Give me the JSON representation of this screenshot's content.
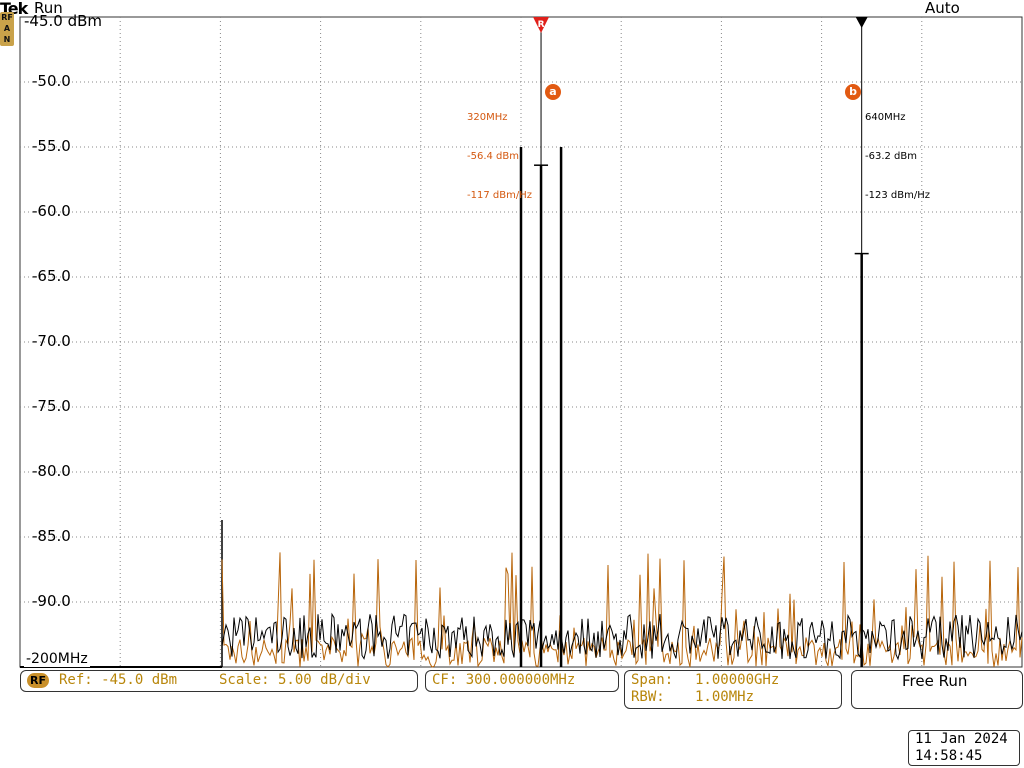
{
  "header": {
    "brand": "Tek",
    "run_state": "Run",
    "trigger_mode": "Auto"
  },
  "rf_indicator": [
    "RF",
    "A",
    "N"
  ],
  "y_axis": {
    "labels": [
      "-45.0 dBm",
      "-50.0",
      "-55.0",
      "-60.0",
      "-65.0",
      "-70.0",
      "-75.0",
      "-80.0",
      "-85.0",
      "-90.0"
    ],
    "min_dbm": -95,
    "max_dbm": -45
  },
  "x_axis": {
    "left_label": "-200MHz"
  },
  "markers": {
    "a": {
      "badge": "a",
      "freq": "320MHz",
      "level": "-56.4 dBm",
      "density": "-117 dBm/Hz",
      "freq_mhz": 320,
      "level_dbm": -56.4,
      "ref_flag": "R"
    },
    "b": {
      "badge": "b",
      "freq": "640MHz",
      "level": "-63.2 dBm",
      "density": "-123 dBm/Hz",
      "freq_mhz": 640,
      "level_dbm": -63.2
    }
  },
  "status": {
    "rf_tag": "RF",
    "ref": "Ref: -45.0 dBm",
    "scale": "Scale: 5.00 dB/div",
    "cf": "CF:  300.000000MHz",
    "span_label": "Span:",
    "span_value": "1.00000GHz",
    "rbw_label": "RBW:",
    "rbw_value": "1.00MHz",
    "acq_mode": "Free Run"
  },
  "datetime": {
    "date": "11 Jan  2024",
    "time": "14:58:45"
  },
  "colors": {
    "trace_avg": "#000000",
    "trace_max": "#b8650a",
    "marker": "#d4580f",
    "grid": "#888888"
  },
  "chart_data": {
    "type": "line",
    "xlabel": "",
    "ylabel": "",
    "xlim_mhz": [
      -200,
      800
    ],
    "ylim": [
      -95,
      -45
    ],
    "series": [
      {
        "values_peaks_mhz": [
          300,
          320,
          340,
          640
        ],
        "values_peaks_dbm": [
          -55,
          -56.4,
          -55,
          -63.2
        ]
      }
    ]
  }
}
